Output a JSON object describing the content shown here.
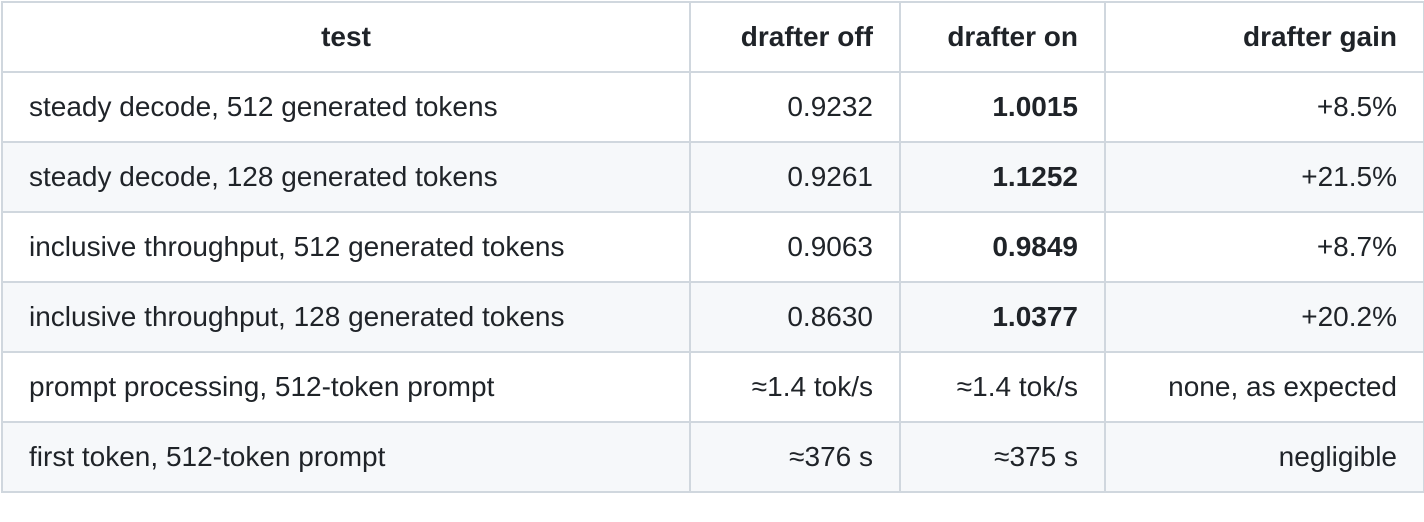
{
  "table": {
    "header": [
      "test",
      "drafter off",
      "drafter on",
      "drafter gain"
    ],
    "rows": [
      [
        "steady decode, 512 generated tokens",
        "0.9232",
        "1.0015",
        "+8.5%"
      ],
      [
        "steady decode, 128 generated tokens",
        "0.9261",
        "1.1252",
        "+21.5%"
      ],
      [
        "inclusive throughput, 512 generated tokens",
        "0.9063",
        "0.9849",
        "+8.7%"
      ],
      [
        "inclusive throughput, 128 generated tokens",
        "0.8630",
        "1.0377",
        "+20.2%"
      ],
      [
        "prompt processing, 512-token prompt",
        "≈1.4 tok/s",
        "≈1.4 tok/s",
        "none, as expected"
      ],
      [
        "first token, 512-token prompt",
        "≈376 s",
        "≈375 s",
        "negligible"
      ]
    ]
  }
}
